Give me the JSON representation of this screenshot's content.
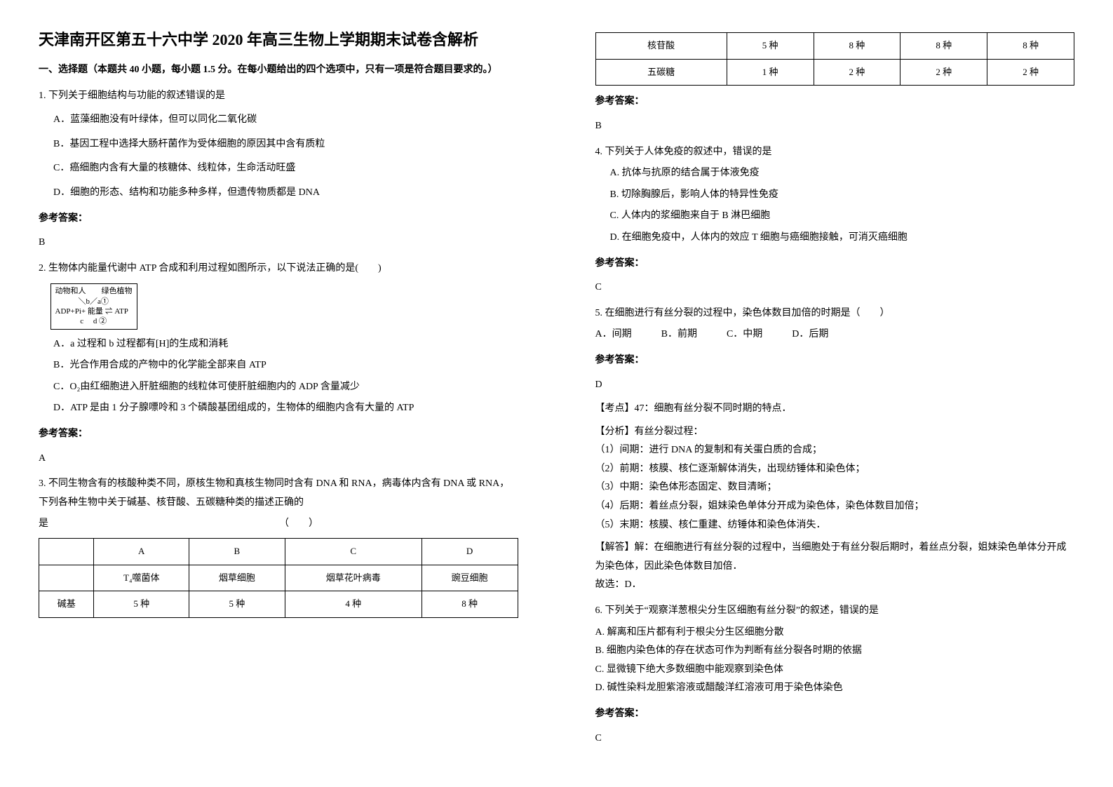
{
  "title": "天津南开区第五十六中学 2020 年高三生物上学期期末试卷含解析",
  "section1_head": "一、选择题（本题共 40 小题，每小题 1.5 分。在每小题给出的四个选项中，只有一项是符合题目要求的。）",
  "q1": {
    "stem": "1. 下列关于细胞结构与功能的叙述错误的是",
    "A": "A．蓝藻细胞没有叶绿体，但可以同化二氧化碳",
    "B": "B．基因工程中选择大肠杆菌作为受体细胞的原因其中含有质粒",
    "C": "C．癌细胞内含有大量的核糖体、线粒体，生命活动旺盛",
    "D": "D．细胞的形态、结构和功能多种多样，但遗传物质都是 DNA",
    "ans_label": "参考答案：",
    "ans": "B"
  },
  "q2": {
    "stem": "2. 生物体内能量代谢中 ATP 合成和利用过程如图所示，以下说法正确的是(　　)",
    "diagram_l1": "动物和人　　绿色植物",
    "diagram_l2": "　　　＼b／a①",
    "diagram_l3": "ADP+Pi+ 能量 ⇌ ATP",
    "diagram_l4": "　　　 c　 d ②",
    "A": "A．a 过程和 b 过程都有[H]的生成和消耗",
    "B": "B．光合作用合成的产物中的化学能全部来自 ATP",
    "C": "C．O₂由红细胞进入肝脏细胞的线粒体可使肝脏细胞内的 ADP 含量减少",
    "D": "D．ATP 是由 1 分子腺嘌呤和 3 个磷酸基团组成的，生物体的细胞内含有大量的 ATP",
    "ans_label": "参考答案：",
    "ans": "A"
  },
  "q3": {
    "stem1": "3. 不同生物含有的核酸种类不同，原核生物和真核生物同时含有 DNA 和 RNA，病毒体内含有 DNA 或 RNA，下列各种生物中关于碱基、核苷酸、五碳糖种类的描述正确的",
    "stem2": "是　　　　　　　　　　　　　　　　　　　　　　　　（　　）",
    "table": {
      "cols": [
        "",
        "A",
        "B",
        "C",
        "D"
      ],
      "row1": [
        "",
        "T₄噬菌体",
        "烟草细胞",
        "烟草花叶病毒",
        "豌豆细胞"
      ],
      "row2": [
        "碱基",
        "5 种",
        "5 种",
        "4 种",
        "8 种"
      ],
      "row3": [
        "核苷酸",
        "5 种",
        "8 种",
        "8 种",
        "8 种"
      ],
      "row4": [
        "五碳糖",
        "1 种",
        "2 种",
        "2 种",
        "2 种"
      ]
    },
    "ans_label": "参考答案：",
    "ans": "B"
  },
  "q4": {
    "stem": "4. 下列关于人体免疫的叙述中，错误的是",
    "A": "A. 抗体与抗原的结合属于体液免疫",
    "B": "B. 切除胸腺后，影响人体的特异性免疫",
    "C": "C. 人体内的浆细胞来自于 B 淋巴细胞",
    "D": "D. 在细胞免疫中，人体内的效应 T 细胞与癌细胞接触，可消灭癌细胞",
    "ans_label": "参考答案：",
    "ans": "C"
  },
  "q5": {
    "stem": "5. 在细胞进行有丝分裂的过程中，染色体数目加倍的时期是（　　）",
    "opts": "A．间期　　　B．前期　　　C．中期　　　D．后期",
    "ans_label": "参考答案：",
    "ans": "D",
    "tag": "【考点】47：细胞有丝分裂不同时期的特点．",
    "ana_head": "【分析】有丝分裂过程：",
    "ana1": "（1）间期：进行 DNA 的复制和有关蛋白质的合成；",
    "ana2": "（2）前期：核膜、核仁逐渐解体消失，出现纺锤体和染色体；",
    "ana3": "（3）中期：染色体形态固定、数目清晰；",
    "ana4": "（4）后期：着丝点分裂，姐妹染色单体分开成为染色体，染色体数目加倍；",
    "ana5": "（5）末期：核膜、核仁重建、纺锤体和染色体消失．",
    "sol": "【解答】解：在细胞进行有丝分裂的过程中，当细胞处于有丝分裂后期时，着丝点分裂，姐妹染色单体分开成为染色体，因此染色体数目加倍．",
    "sol2": "故选：D．"
  },
  "q6": {
    "stem": "6. 下列关于“观察洋葱根尖分生区细胞有丝分裂”的叙述，错误的是",
    "A": "A. 解离和压片都有利于根尖分生区细胞分散",
    "B": "B. 细胞内染色体的存在状态可作为判断有丝分裂各时期的依据",
    "C": "C. 显微镜下绝大多数细胞中能观察到染色体",
    "D": "D. 碱性染料龙胆紫溶液或醋酸洋红溶液可用于染色体染色",
    "ans_label": "参考答案：",
    "ans": "C"
  }
}
